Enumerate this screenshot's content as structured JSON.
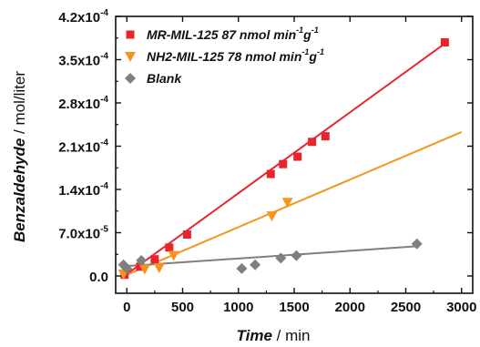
{
  "chart_data": {
    "type": "scatter",
    "xlabel": {
      "main": "Time",
      "unit": " / min"
    },
    "ylabel": {
      "main": "Benzaldehyde",
      "unit": " / mol/liter"
    },
    "xlim": [
      -100,
      3100
    ],
    "ylim": [
      -2.8e-05,
      0.00042
    ],
    "x_ticks": [
      0,
      500,
      1000,
      1500,
      2000,
      2500,
      3000
    ],
    "x_tick_labels": [
      "0",
      "500",
      "1000",
      "1500",
      "2000",
      "2500",
      "3000"
    ],
    "y_ticks": [
      0,
      7e-05,
      0.00014,
      0.00021,
      0.00028,
      0.00035,
      0.00042
    ],
    "y_tick_labels": [
      {
        "mant": "0.0",
        "exp": ""
      },
      {
        "mant": "7.0x10",
        "exp": "-5"
      },
      {
        "mant": "1.4x10",
        "exp": "-4"
      },
      {
        "mant": "2.1x10",
        "exp": "-4"
      },
      {
        "mant": "2.8x10",
        "exp": "-4"
      },
      {
        "mant": "3.5x10",
        "exp": "-4"
      },
      {
        "mant": "4.2x10",
        "exp": "-4"
      }
    ],
    "legend_position": "top-left",
    "series": [
      {
        "name": "MR-MIL-125  87 nmol min",
        "name_sup1": "-1",
        "name_mid": "g",
        "name_sup2": "-1",
        "marker": "square",
        "color": "#e8252b",
        "points": [
          [
            -20,
            2e-06
          ],
          [
            120,
            1.5e-05
          ],
          [
            250,
            2.7e-05
          ],
          [
            380,
            4.6e-05
          ],
          [
            540,
            6.7e-05
          ],
          [
            1290,
            0.000165
          ],
          [
            1400,
            0.000181
          ],
          [
            1530,
            0.000193
          ],
          [
            1660,
            0.000217
          ],
          [
            1780,
            0.000226
          ],
          [
            2850,
            0.000378
          ]
        ],
        "fit": [
          [
            0,
            3e-06
          ],
          [
            2850,
            0.000376
          ]
        ]
      },
      {
        "name": "NH2-MIL-125  78 nmol min",
        "name_sup1": "-1",
        "name_mid": "g",
        "name_sup2": "-1",
        "marker": "triangle-down",
        "color": "#f7941d",
        "points": [
          [
            -30,
            3e-06
          ],
          [
            160,
            1.1e-05
          ],
          [
            290,
            1.3e-05
          ],
          [
            420,
            3.3e-05
          ],
          [
            1300,
            9.7e-05
          ],
          [
            1440,
            0.000119
          ]
        ],
        "fit": [
          [
            0,
            2e-06
          ],
          [
            3000,
            0.000233
          ]
        ]
      },
      {
        "name": "Blank",
        "marker": "diamond",
        "color": "#7f7f7f",
        "points": [
          [
            -30,
            1.8e-05
          ],
          [
            0,
            1.2e-05
          ],
          [
            130,
            2.5e-05
          ],
          [
            1030,
            1.2e-05
          ],
          [
            1150,
            1.8e-05
          ],
          [
            1380,
            2.9e-05
          ],
          [
            1520,
            3.3e-05
          ],
          [
            2600,
            5.2e-05
          ]
        ],
        "fit": [
          [
            0,
            1.6e-05
          ],
          [
            2600,
            4.8e-05
          ]
        ]
      }
    ]
  }
}
